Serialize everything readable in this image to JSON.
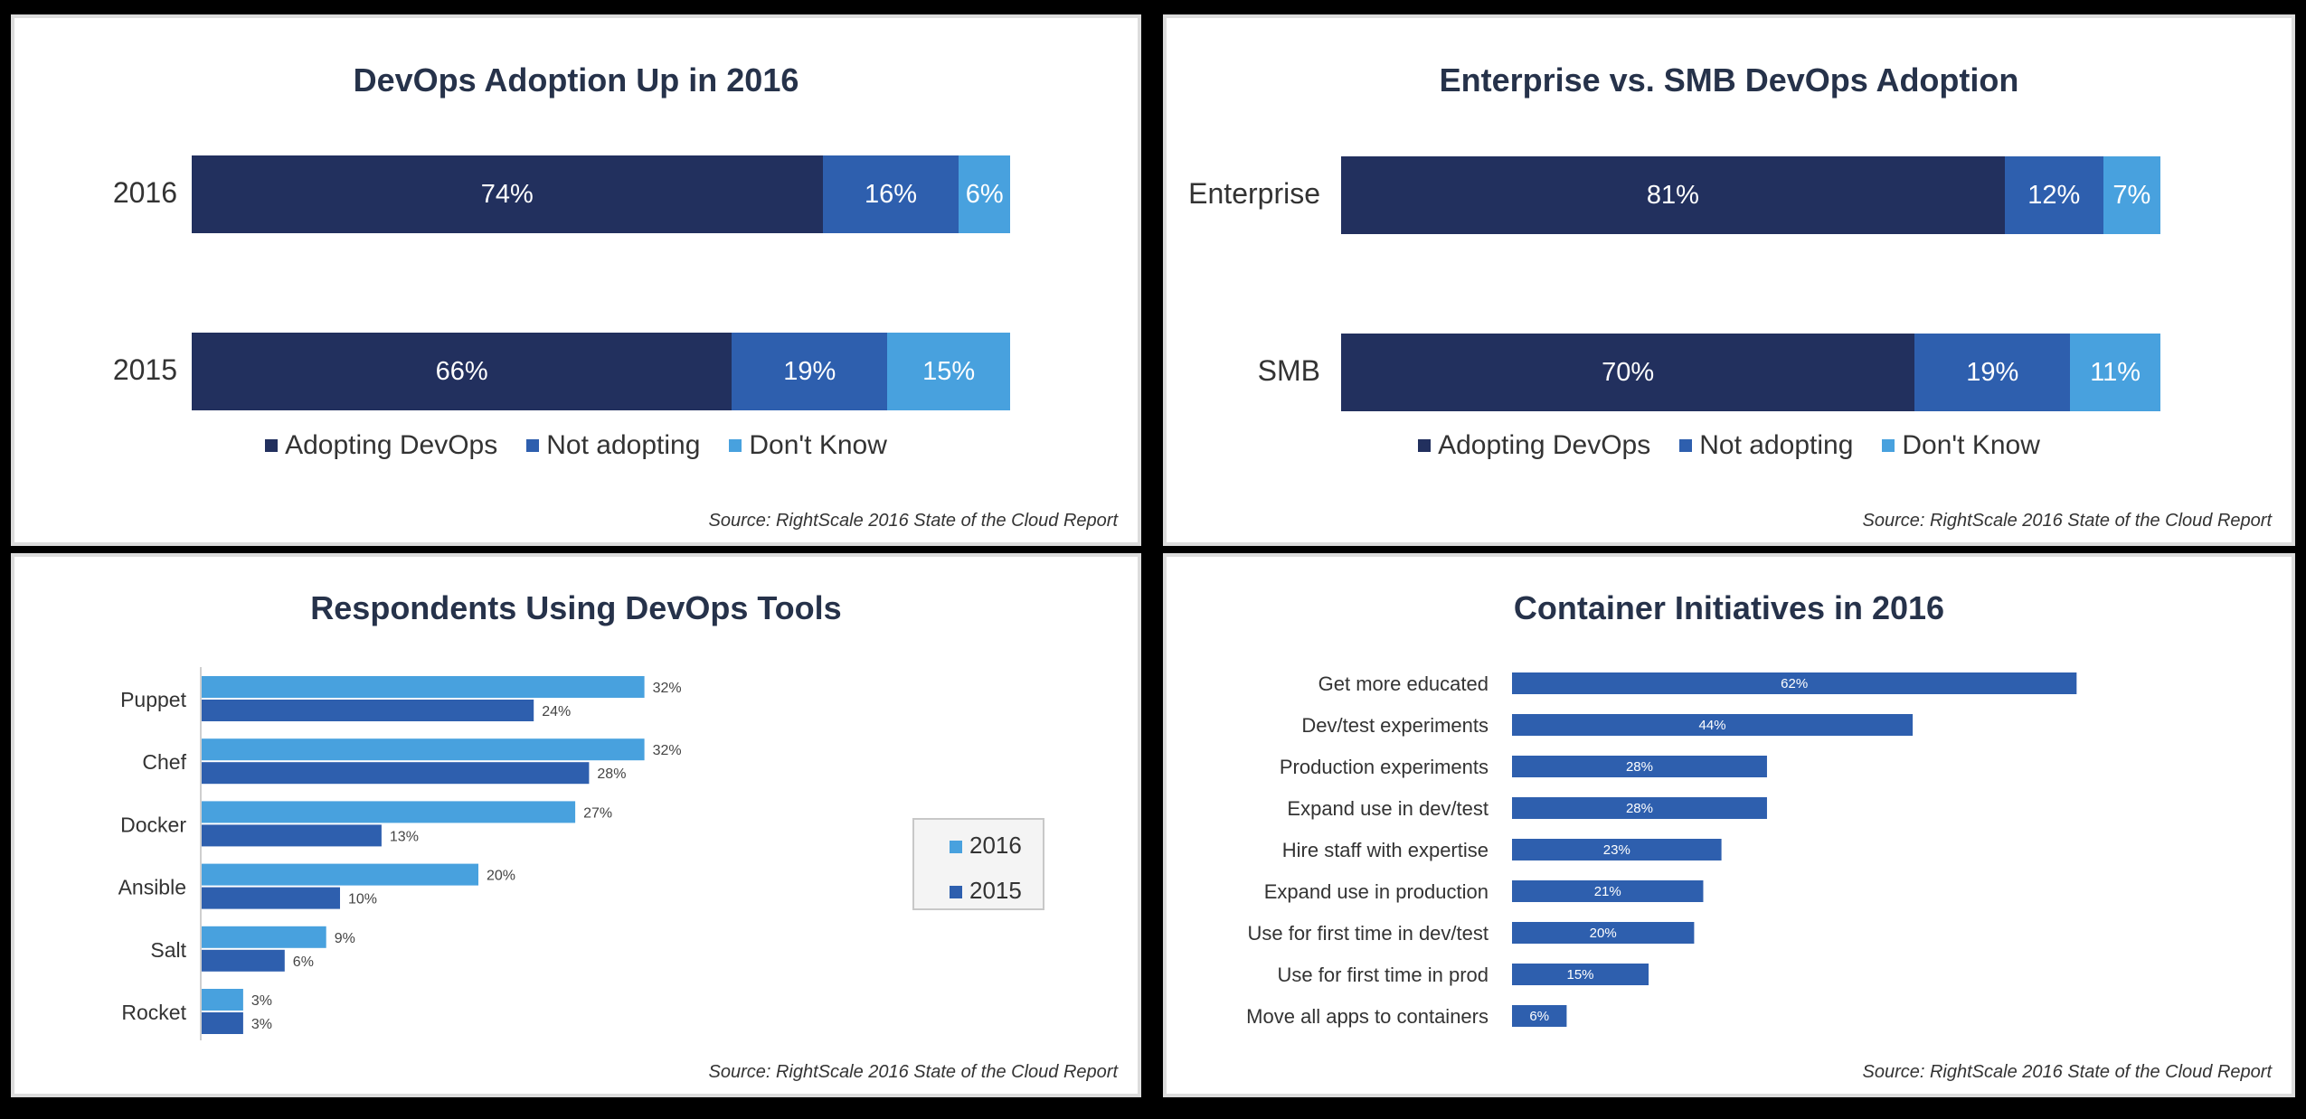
{
  "colors": {
    "adopting": "#22305e",
    "not_adopting": "#2e5fae",
    "dont_know": "#48a1de",
    "tools_2016": "#48a1de",
    "tools_2015": "#2e5fae",
    "containers": "#2e5fae"
  },
  "chart_data": [
    {
      "type": "bar",
      "stacked": true,
      "orientation": "horizontal",
      "title": "DevOps Adoption Up in 2016",
      "categories": [
        "2016",
        "2015"
      ],
      "series": [
        {
          "name": "Adopting DevOps",
          "values": [
            74,
            66
          ],
          "labels": [
            "74%",
            "66%"
          ]
        },
        {
          "name": "Not adopting",
          "values": [
            16,
            19
          ],
          "labels": [
            "16%",
            "19%"
          ]
        },
        {
          "name": "Don't Know",
          "values": [
            6,
            15
          ],
          "labels": [
            "6%",
            "15%"
          ]
        }
      ],
      "source": "Source: RightScale 2016 State of the Cloud Report"
    },
    {
      "type": "bar",
      "stacked": true,
      "orientation": "horizontal",
      "title": "Enterprise vs. SMB DevOps Adoption",
      "categories": [
        "Enterprise",
        "SMB"
      ],
      "series": [
        {
          "name": "Adopting DevOps",
          "values": [
            81,
            70
          ],
          "labels": [
            "81%",
            "70%"
          ]
        },
        {
          "name": "Not adopting",
          "values": [
            12,
            19
          ],
          "labels": [
            "12%",
            "19%"
          ]
        },
        {
          "name": "Don't Know",
          "values": [
            7,
            11
          ],
          "labels": [
            "7%",
            "11%"
          ]
        }
      ],
      "source": "Source: RightScale 2016 State of the Cloud Report"
    },
    {
      "type": "bar",
      "orientation": "horizontal",
      "title": "Respondents Using DevOps Tools",
      "categories": [
        "Puppet",
        "Chef",
        "Docker",
        "Ansible",
        "Salt",
        "Rocket"
      ],
      "series": [
        {
          "name": "2016",
          "values": [
            32,
            32,
            27,
            20,
            9,
            3
          ],
          "labels": [
            "32%",
            "32%",
            "27%",
            "20%",
            "9%",
            "3%"
          ]
        },
        {
          "name": "2015",
          "values": [
            24,
            28,
            13,
            10,
            6,
            3
          ],
          "labels": [
            "24%",
            "28%",
            "13%",
            "10%",
            "6%",
            "3%"
          ]
        }
      ],
      "legend": [
        "2016",
        "2015"
      ],
      "source": "Source: RightScale 2016 State of the Cloud Report"
    },
    {
      "type": "bar",
      "orientation": "horizontal",
      "title": "Container Initiatives in 2016",
      "categories": [
        "Get more educated",
        "Dev/test experiments",
        "Production experiments",
        "Expand use in dev/test",
        "Hire staff with expertise",
        "Expand use in production",
        "Use for first time in dev/test",
        "Use for first time in prod",
        "Move all apps to containers"
      ],
      "values": [
        62,
        44,
        28,
        28,
        23,
        21,
        20,
        15,
        6
      ],
      "labels": [
        "62%",
        "44%",
        "28%",
        "28%",
        "23%",
        "21%",
        "20%",
        "15%",
        "6%"
      ],
      "source": "Source: RightScale 2016 State of the Cloud Report"
    }
  ]
}
